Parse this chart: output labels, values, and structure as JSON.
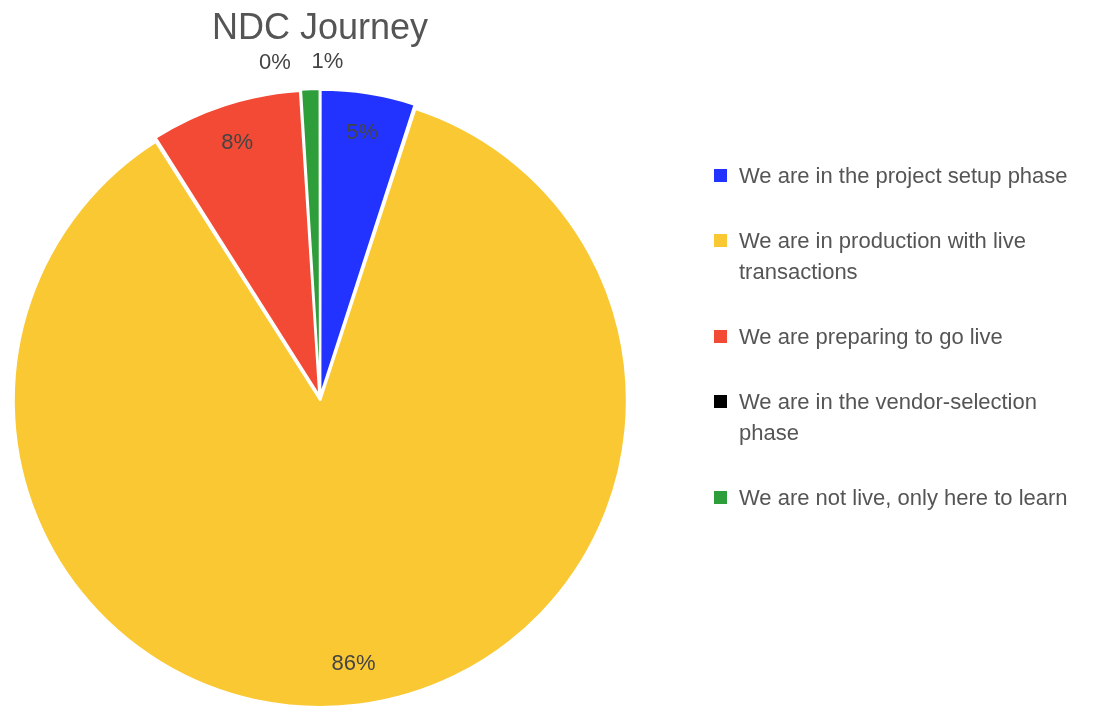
{
  "chart_data": {
    "type": "pie",
    "title": "NDC Journey",
    "categories": [
      "We are in the project setup phase",
      "We are in production with live transactions",
      "We are preparing to go live",
      "We are in the vendor-selection phase",
      "We are not live, only here to learn"
    ],
    "values": [
      5,
      86,
      8,
      0,
      1
    ],
    "colors": [
      "#2233ff",
      "#f9c832",
      "#f24a35",
      "#000000",
      "#2e9e3a"
    ],
    "value_labels": [
      "5%",
      "86%",
      "8%",
      "0%",
      "1%"
    ],
    "legend": "right"
  }
}
